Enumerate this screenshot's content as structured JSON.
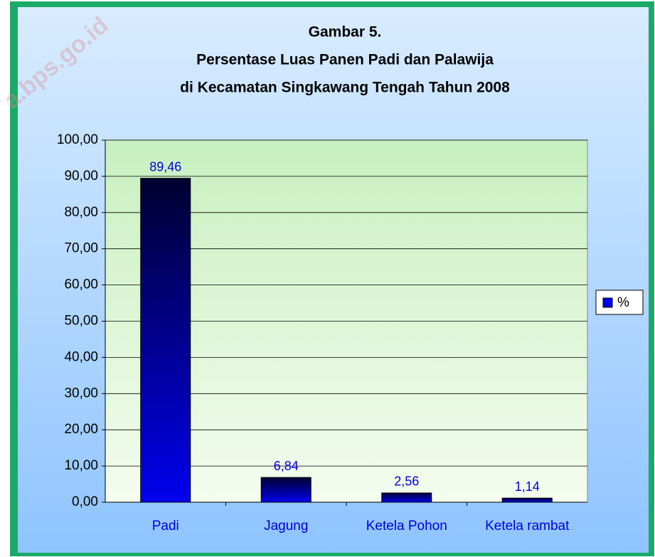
{
  "chart_data": {
    "type": "bar",
    "title": [
      "Gambar 5.",
      "Persentase Luas Panen Padi dan Palawija",
      "di Kecamatan Singkawang Tengah Tahun 2008"
    ],
    "watermark": "a.bps.go.id",
    "categories": [
      "Padi",
      "Jagung",
      "Ketela Pohon",
      "Ketela rambat"
    ],
    "series": [
      {
        "name": "%",
        "color": "#0000ee",
        "values": [
          89.46,
          6.84,
          2.56,
          1.14
        ],
        "value_labels": [
          "89,46",
          "6,84",
          "2,56",
          "1,14"
        ]
      }
    ],
    "ylim": [
      0,
      100
    ],
    "yticks": [
      {
        "value": 0,
        "label": "0,00"
      },
      {
        "value": 10,
        "label": "10,00"
      },
      {
        "value": 20,
        "label": "20,00"
      },
      {
        "value": 30,
        "label": "30,00"
      },
      {
        "value": 40,
        "label": "40,00"
      },
      {
        "value": 50,
        "label": "50,00"
      },
      {
        "value": 60,
        "label": "60,00"
      },
      {
        "value": 70,
        "label": "70,00"
      },
      {
        "value": 80,
        "label": "80,00"
      },
      {
        "value": 90,
        "label": "90,00"
      },
      {
        "value": 100,
        "label": "100,00"
      }
    ],
    "grid": true,
    "legend": "right"
  }
}
